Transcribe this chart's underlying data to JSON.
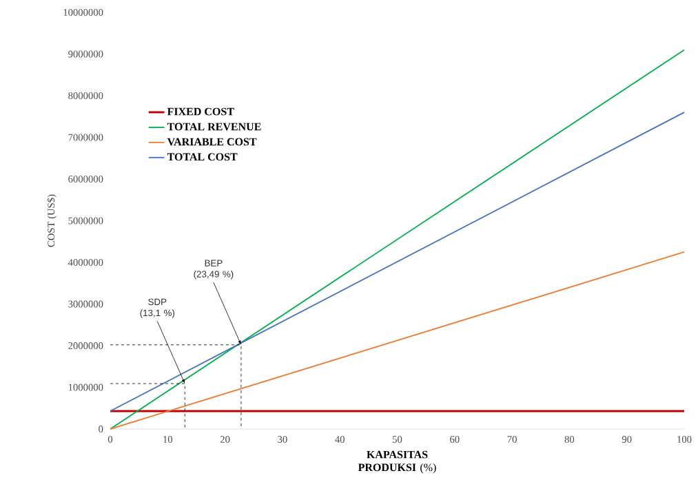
{
  "chart_data": {
    "type": "line",
    "x": [
      0,
      100
    ],
    "xlabel": "**KAPASITAS PRODUKSI** (%)",
    "ylabel": "COST (US$)",
    "xlim": [
      0,
      100
    ],
    "xticks": [
      0,
      10,
      20,
      30,
      40,
      50,
      60,
      70,
      80,
      90,
      100
    ],
    "ylim": [
      0,
      10000000
    ],
    "yticks": [
      0,
      1000000,
      2000000,
      3000000,
      4000000,
      5000000,
      6000000,
      7000000,
      8000000,
      9000000,
      10000000
    ],
    "legend": "top left",
    "series": [
      {
        "name": "FIXED COST",
        "color": "#c00000",
        "values": [
          430000,
          430000
        ]
      },
      {
        "name": "TOTAL REVENUE",
        "color": "#00b050",
        "values": [
          0,
          9100000
        ]
      },
      {
        "name": "VARIABLE COST",
        "color": "#ed7d31",
        "values": [
          0,
          4250000
        ]
      },
      {
        "name": "TOTAL COST",
        "color": "#4472c4",
        "values": [
          430000,
          7600000
        ]
      },
      {
        "type": "line",
        "x": [
          0,
          22.8,
          22.8
        ],
        "color": "#000000",
        "line_style": "dashed",
        "values": [
          2020000,
          2020000,
          0
        ]
      },
      {
        "type": "line",
        "x": [
          0,
          13.0,
          13.0
        ],
        "color": "#000000",
        "line_style": "dashed",
        "values": [
          1090000,
          1090000,
          0
        ]
      }
    ],
    "annotations": [
      {
        "text": "BEP (23,49 %)",
        "x": 22.8,
        "y": 2020000
      },
      {
        "text": "SDP (13,1 %)",
        "x": 13.0,
        "y": 1090000
      }
    ]
  }
}
